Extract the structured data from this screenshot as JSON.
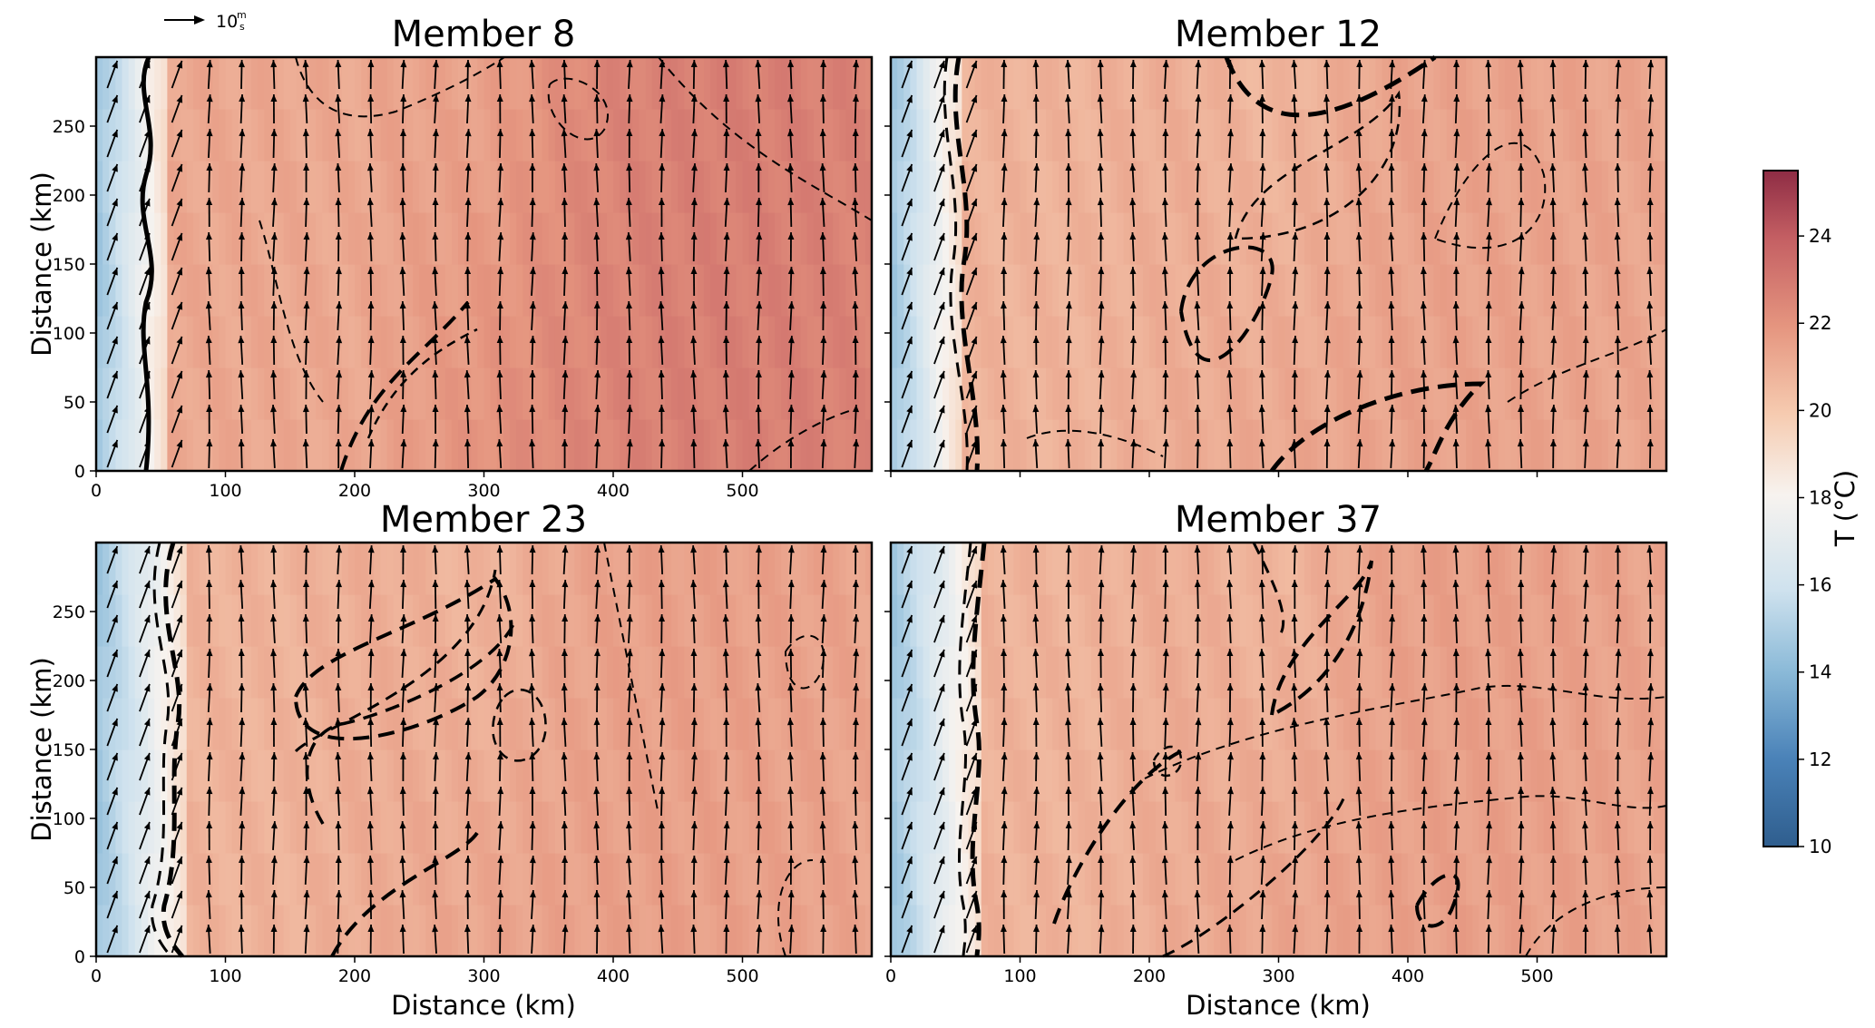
{
  "figure": {
    "reference_arrow_label": "10",
    "reference_arrow_unit_num": "m",
    "reference_arrow_unit_den": "s"
  },
  "chart_data": [
    {
      "type": "heatmap",
      "title": "Member 8",
      "xlabel": "",
      "ylabel": "Distance (km)",
      "x_ticks": [
        "0",
        "100",
        "200",
        "300",
        "400",
        "500"
      ],
      "y_ticks": [
        "0",
        "50",
        "100",
        "150",
        "200",
        "250"
      ],
      "xlim": [
        0,
        600
      ],
      "ylim": [
        0,
        300
      ],
      "field": "temperature",
      "cold_band_width_km": 55,
      "warm_center_km": 500,
      "warm_max_c": 22.8,
      "background_c": 21.3,
      "vectors": "wind arrows, mostly northward"
    },
    {
      "type": "heatmap",
      "title": "Member 12",
      "xlabel": "",
      "ylabel": "",
      "x_ticks": [],
      "y_ticks": [],
      "xlim": [
        0,
        600
      ],
      "ylim": [
        0,
        300
      ],
      "field": "temperature",
      "cold_band_width_km": 55,
      "warm_center_km": 450,
      "warm_max_c": 21.5,
      "background_c": 20.9,
      "vectors": "wind arrows, mostly northward"
    },
    {
      "type": "heatmap",
      "title": "Member 23",
      "xlabel": "Distance (km)",
      "ylabel": "Distance (km)",
      "x_ticks": [
        "0",
        "100",
        "200",
        "300",
        "400",
        "500"
      ],
      "y_ticks": [
        "0",
        "50",
        "100",
        "150",
        "200",
        "250"
      ],
      "xlim": [
        0,
        600
      ],
      "ylim": [
        0,
        300
      ],
      "field": "temperature",
      "cold_band_width_km": 70,
      "warm_center_km": 450,
      "warm_max_c": 21.6,
      "background_c": 20.9,
      "vectors": "wind arrows, mostly northward"
    },
    {
      "type": "heatmap",
      "title": "Member 37",
      "xlabel": "Distance (km)",
      "ylabel": "",
      "x_ticks": [
        "0",
        "100",
        "200",
        "300",
        "400",
        "500"
      ],
      "y_ticks": [],
      "xlim": [
        0,
        600
      ],
      "ylim": [
        0,
        300
      ],
      "field": "temperature",
      "cold_band_width_km": 70,
      "warm_center_km": 450,
      "warm_max_c": 21.6,
      "background_c": 20.9,
      "vectors": "wind arrows, mostly northward"
    }
  ],
  "colorbar": {
    "label": "T (°C)",
    "min": 10,
    "max": 25.5,
    "ticks": [
      "10",
      "12",
      "14",
      "16",
      "18",
      "20",
      "22",
      "24"
    ],
    "tick_values": [
      10,
      12,
      14,
      16,
      18,
      20,
      22,
      24
    ]
  },
  "colors": {
    "cold": "#3a6a9e",
    "neutral": "#f7f7f7",
    "warm": "#b4485a",
    "arrow": "#000000"
  }
}
